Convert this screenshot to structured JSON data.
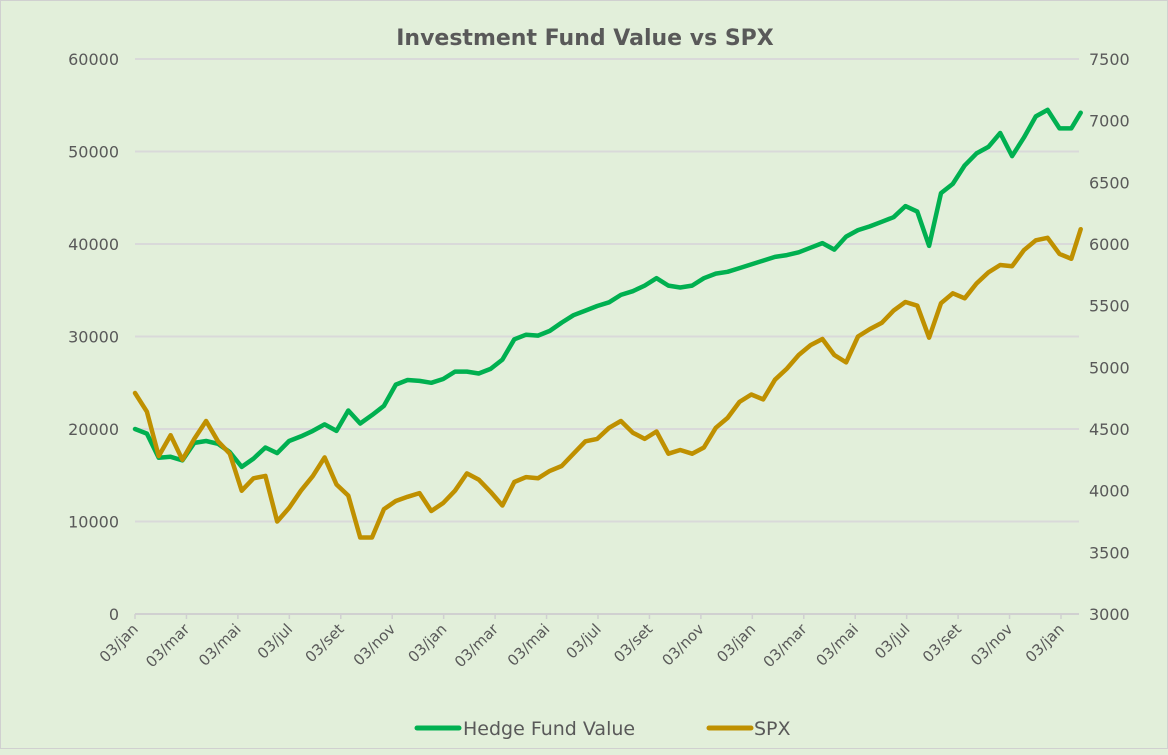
{
  "chart_data": {
    "type": "line",
    "title": "Investment Fund Value vs SPX",
    "xlabel": "",
    "ylabel": "",
    "y2label": "",
    "ylim": [
      0,
      60000
    ],
    "y2lim": [
      3000,
      7500
    ],
    "yticks": [
      "0",
      "10000",
      "20000",
      "30000",
      "40000",
      "50000",
      "60000"
    ],
    "y2ticks": [
      "3000",
      "3500",
      "4000",
      "4500",
      "5000",
      "5500",
      "6000",
      "6500",
      "7000",
      "7500"
    ],
    "xticks": [
      "03/jan",
      "03/mar",
      "03/mai",
      "03/jul",
      "03/set",
      "03/nov",
      "03/jan",
      "03/mar",
      "03/mai",
      "03/jul",
      "03/set",
      "03/nov",
      "03/jan",
      "03/mar",
      "03/mai",
      "03/jul",
      "03/set",
      "03/nov",
      "03/jan"
    ],
    "grid": true,
    "legend": "bottom",
    "colors": {
      "background": "#e2efda",
      "grid": "#d9d9d9",
      "title": "#595959",
      "text": "#595959"
    },
    "x": [
      "2022-01-03",
      "2022-01-17",
      "2022-01-31",
      "2022-02-14",
      "2022-02-28",
      "2022-03-14",
      "2022-03-28",
      "2022-04-11",
      "2022-04-25",
      "2022-05-09",
      "2022-05-23",
      "2022-06-06",
      "2022-06-20",
      "2022-07-04",
      "2022-07-18",
      "2022-08-01",
      "2022-08-15",
      "2022-08-29",
      "2022-09-12",
      "2022-09-26",
      "2022-10-10",
      "2022-10-24",
      "2022-11-07",
      "2022-11-21",
      "2022-12-05",
      "2022-12-19",
      "2023-01-02",
      "2023-01-16",
      "2023-01-30",
      "2023-02-13",
      "2023-02-27",
      "2023-03-13",
      "2023-03-27",
      "2023-04-10",
      "2023-04-24",
      "2023-05-08",
      "2023-05-22",
      "2023-06-05",
      "2023-06-19",
      "2023-07-03",
      "2023-07-17",
      "2023-07-31",
      "2023-08-14",
      "2023-08-28",
      "2023-09-11",
      "2023-09-25",
      "2023-10-09",
      "2023-10-23",
      "2023-11-06",
      "2023-11-20",
      "2023-12-04",
      "2023-12-18",
      "2024-01-01",
      "2024-01-15",
      "2024-01-29",
      "2024-02-12",
      "2024-02-26",
      "2024-03-11",
      "2024-03-25",
      "2024-04-08",
      "2024-04-22",
      "2024-05-06",
      "2024-05-20",
      "2024-06-03",
      "2024-06-17",
      "2024-07-01",
      "2024-07-15",
      "2024-07-29",
      "2024-08-12",
      "2024-08-26",
      "2024-09-09",
      "2024-09-23",
      "2024-10-07",
      "2024-10-21",
      "2024-11-04",
      "2024-11-18",
      "2024-12-02",
      "2024-12-16",
      "2024-12-30",
      "2025-01-13",
      "2025-01-24"
    ],
    "series": [
      {
        "name": "Hedge Fund Value",
        "axis": "left",
        "color": "#00b050",
        "values": [
          20000,
          19500,
          16900,
          17000,
          16600,
          18500,
          18700,
          18400,
          17500,
          15900,
          16800,
          18000,
          17400,
          18700,
          19200,
          19800,
          20500,
          19800,
          22000,
          20600,
          21500,
          22500,
          24800,
          25300,
          25200,
          25000,
          25400,
          26200,
          26200,
          26000,
          26500,
          27500,
          29700,
          30200,
          30100,
          30600,
          31500,
          32300,
          32800,
          33300,
          33700,
          34500,
          34900,
          35500,
          36300,
          35500,
          35300,
          35500,
          36300,
          36800,
          37000,
          37400,
          37800,
          38200,
          38600,
          38800,
          39100,
          39600,
          40100,
          39400,
          40800,
          41500,
          41900,
          42400,
          42900,
          44100,
          43500,
          39800,
          45500,
          46500,
          48500,
          49800,
          50500,
          52000,
          49500,
          51500,
          53800,
          54500,
          52500,
          52500,
          54200
        ]
      },
      {
        "name": "SPX",
        "axis": "right",
        "color": "#bf9000",
        "values": [
          4792,
          4640,
          4280,
          4450,
          4250,
          4420,
          4565,
          4400,
          4300,
          4000,
          4100,
          4120,
          3750,
          3860,
          4000,
          4118,
          4270,
          4050,
          3960,
          3620,
          3620,
          3850,
          3916,
          3950,
          3980,
          3835,
          3900,
          4000,
          4140,
          4090,
          3990,
          3880,
          4070,
          4110,
          4100,
          4160,
          4200,
          4300,
          4400,
          4420,
          4510,
          4565,
          4470,
          4420,
          4480,
          4300,
          4330,
          4300,
          4350,
          4510,
          4590,
          4720,
          4780,
          4740,
          4900,
          4990,
          5100,
          5180,
          5230,
          5100,
          5040,
          5250,
          5310,
          5360,
          5460,
          5530,
          5500,
          5240,
          5520,
          5600,
          5560,
          5680,
          5770,
          5830,
          5820,
          5950,
          6030,
          6050,
          5920,
          5880,
          6120
        ]
      }
    ]
  }
}
